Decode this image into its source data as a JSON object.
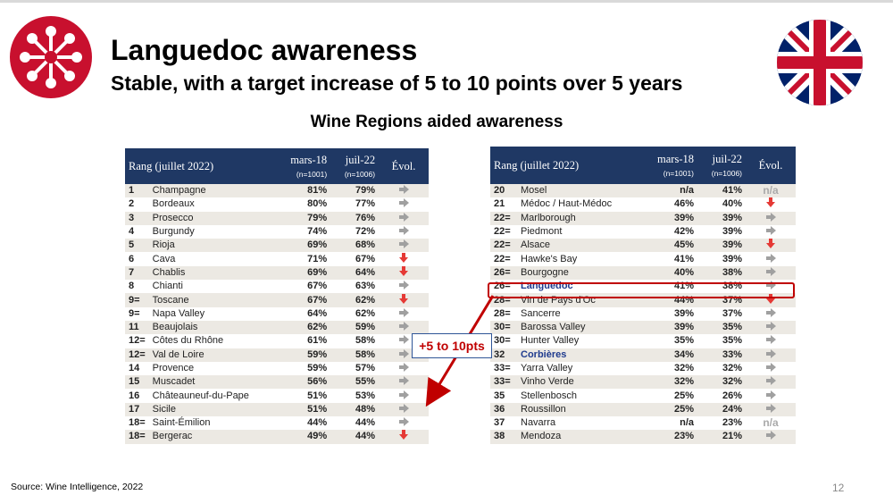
{
  "title": "Languedoc awareness",
  "subtitle": "Stable, with a target increase of 5 to 10 points over 5 years",
  "table_title": "Wine Regions aided awareness",
  "columns": {
    "rank": "Rang (juillet 2022)",
    "mar18": "mars-18",
    "mar18_n": "(n=1001)",
    "jul22": "juil-22",
    "jul22_n": "(n=1006)",
    "evol": "Évol."
  },
  "left_rows": [
    {
      "rank": "1",
      "name": "Champagne",
      "mar18": "81%",
      "jul22": "79%",
      "evol": "right"
    },
    {
      "rank": "2",
      "name": "Bordeaux",
      "mar18": "80%",
      "jul22": "77%",
      "evol": "right"
    },
    {
      "rank": "3",
      "name": "Prosecco",
      "mar18": "79%",
      "jul22": "76%",
      "evol": "right"
    },
    {
      "rank": "4",
      "name": "Burgundy",
      "mar18": "74%",
      "jul22": "72%",
      "evol": "right"
    },
    {
      "rank": "5",
      "name": "Rioja",
      "mar18": "69%",
      "jul22": "68%",
      "evol": "right"
    },
    {
      "rank": "6",
      "name": "Cava",
      "mar18": "71%",
      "jul22": "67%",
      "evol": "down"
    },
    {
      "rank": "7",
      "name": "Chablis",
      "mar18": "69%",
      "jul22": "64%",
      "evol": "down"
    },
    {
      "rank": "8",
      "name": "Chianti",
      "mar18": "67%",
      "jul22": "63%",
      "evol": "right"
    },
    {
      "rank": "9=",
      "name": "Toscane",
      "mar18": "67%",
      "jul22": "62%",
      "evol": "down"
    },
    {
      "rank": "9=",
      "name": "Napa Valley",
      "mar18": "64%",
      "jul22": "62%",
      "evol": "right"
    },
    {
      "rank": "11",
      "name": "Beaujolais",
      "mar18": "62%",
      "jul22": "59%",
      "evol": "right"
    },
    {
      "rank": "12=",
      "name": "Côtes du Rhône",
      "mar18": "61%",
      "jul22": "58%",
      "evol": "right"
    },
    {
      "rank": "12=",
      "name": "Val de Loire",
      "mar18": "59%",
      "jul22": "58%",
      "evol": "right"
    },
    {
      "rank": "14",
      "name": "Provence",
      "mar18": "59%",
      "jul22": "57%",
      "evol": "right"
    },
    {
      "rank": "15",
      "name": "Muscadet",
      "mar18": "56%",
      "jul22": "55%",
      "evol": "right"
    },
    {
      "rank": "16",
      "name": "Châteauneuf-du-Pape",
      "mar18": "51%",
      "jul22": "53%",
      "evol": "right"
    },
    {
      "rank": "17",
      "name": "Sicile",
      "mar18": "51%",
      "jul22": "48%",
      "evol": "right"
    },
    {
      "rank": "18=",
      "name": "Saint-Émilion",
      "mar18": "44%",
      "jul22": "44%",
      "evol": "right"
    },
    {
      "rank": "18=",
      "name": "Bergerac",
      "mar18": "49%",
      "jul22": "44%",
      "evol": "down"
    }
  ],
  "right_rows": [
    {
      "rank": "20",
      "name": "Mosel",
      "mar18": "n/a",
      "jul22": "41%",
      "evol": "na"
    },
    {
      "rank": "21",
      "name": "Médoc / Haut-Médoc",
      "mar18": "46%",
      "jul22": "40%",
      "evol": "down"
    },
    {
      "rank": "22=",
      "name": "Marlborough",
      "mar18": "39%",
      "jul22": "39%",
      "evol": "right"
    },
    {
      "rank": "22=",
      "name": "Piedmont",
      "mar18": "42%",
      "jul22": "39%",
      "evol": "right"
    },
    {
      "rank": "22=",
      "name": "Alsace",
      "mar18": "45%",
      "jul22": "39%",
      "evol": "down"
    },
    {
      "rank": "22=",
      "name": "Hawke's Bay",
      "mar18": "41%",
      "jul22": "39%",
      "evol": "right"
    },
    {
      "rank": "26=",
      "name": "Bourgogne",
      "mar18": "40%",
      "jul22": "38%",
      "evol": "right"
    },
    {
      "rank": "26=",
      "name": "Languedoc",
      "mar18": "41%",
      "jul22": "38%",
      "evol": "right",
      "highlight": true
    },
    {
      "rank": "28=",
      "name": "Vin de Pays d'Oc",
      "mar18": "44%",
      "jul22": "37%",
      "evol": "down"
    },
    {
      "rank": "28=",
      "name": "Sancerre",
      "mar18": "39%",
      "jul22": "37%",
      "evol": "right"
    },
    {
      "rank": "30=",
      "name": "Barossa Valley",
      "mar18": "39%",
      "jul22": "35%",
      "evol": "right"
    },
    {
      "rank": "30=",
      "name": "Hunter Valley",
      "mar18": "35%",
      "jul22": "35%",
      "evol": "right"
    },
    {
      "rank": "32",
      "name": "Corbières",
      "mar18": "34%",
      "jul22": "33%",
      "evol": "right",
      "blue": true
    },
    {
      "rank": "33=",
      "name": "Yarra Valley",
      "mar18": "32%",
      "jul22": "32%",
      "evol": "right"
    },
    {
      "rank": "33=",
      "name": "Vinho Verde",
      "mar18": "32%",
      "jul22": "32%",
      "evol": "right"
    },
    {
      "rank": "35",
      "name": "Stellenbosch",
      "mar18": "25%",
      "jul22": "26%",
      "evol": "right"
    },
    {
      "rank": "36",
      "name": "Roussillon",
      "mar18": "25%",
      "jul22": "24%",
      "evol": "right"
    },
    {
      "rank": "37",
      "name": "Navarra",
      "mar18": "n/a",
      "jul22": "23%",
      "evol": "na"
    },
    {
      "rank": "38",
      "name": "Mendoza",
      "mar18": "23%",
      "jul22": "21%",
      "evol": "right"
    }
  ],
  "callout": "+5 to 10pts",
  "na_label": "n/a",
  "source": "Source: Wine Intelligence, 2022",
  "page_number": "12",
  "icons": {
    "logo": "occitan-cross-icon",
    "flag": "uk-flag-icon",
    "evol_right": "arrow-right-icon",
    "evol_down": "arrow-down-icon"
  },
  "colors": {
    "header": "#1f3864",
    "highlight": "#c00000",
    "down_arrow": "#e53935",
    "logo": "#c8102e"
  }
}
